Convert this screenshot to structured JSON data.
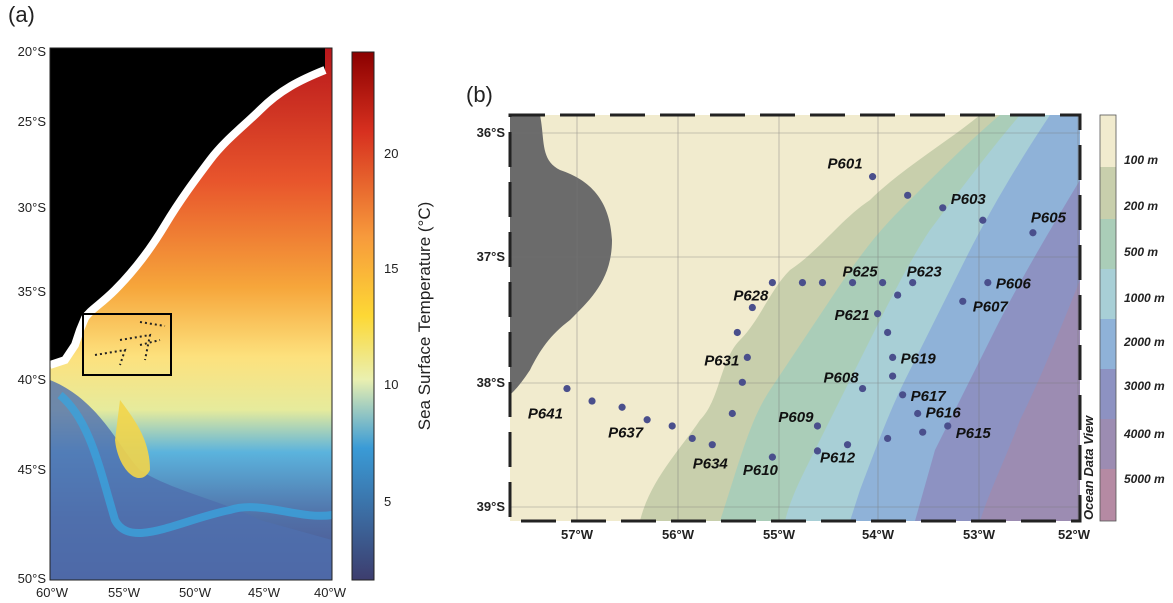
{
  "panel_a": {
    "label": "(a)",
    "lat_ticks": [
      "20°S",
      "25°S",
      "30°S",
      "35°S",
      "40°S",
      "45°S",
      "50°S"
    ],
    "lon_ticks": [
      "60°W",
      "55°W",
      "50°W",
      "45°W",
      "40°W"
    ],
    "colorbar_title": "Sea Surface Temperature (°C)",
    "colorbar_ticks": [
      "20",
      "15",
      "10",
      "5"
    ],
    "colors": {
      "land": "#000000",
      "coast": "#ffffff",
      "warm": "#d7301f",
      "mid": "#fdd835",
      "cold": "#3a9bd6",
      "deep": "#4a4f8c"
    }
  },
  "panel_b": {
    "label": "(b)",
    "lat_ticks": [
      "36°S",
      "37°S",
      "38°S",
      "39°S"
    ],
    "lon_ticks": [
      "57°W",
      "56°W",
      "55°W",
      "54°W",
      "53°W",
      "52°W"
    ],
    "depth_legend": [
      "100 m",
      "200 m",
      "500 m",
      "1000 m",
      "2000 m",
      "3000 m",
      "4000 m",
      "5000 m"
    ],
    "watermark": "Ocean Data View",
    "colors": {
      "land": "#6b6b6b",
      "shelf": "#f1ebce",
      "band200": "#c8cfac",
      "band500": "#aacdb8",
      "band1000": "#a8cfd6",
      "band2000": "#8fb2d8",
      "band3000": "#8d92c2",
      "band4000": "#9c8cb2",
      "station": "#4a4f8c"
    },
    "labeled_stations": [
      {
        "name": "P601",
        "lon": -54.05,
        "lat": -36.35
      },
      {
        "name": "P603",
        "lon": -53.35,
        "lat": -36.6
      },
      {
        "name": "P605",
        "lon": -52.45,
        "lat": -36.8
      },
      {
        "name": "P628",
        "lon": -55.05,
        "lat": -37.2
      },
      {
        "name": "P625",
        "lon": -54.25,
        "lat": -37.2
      },
      {
        "name": "P623",
        "lon": -53.65,
        "lat": -37.2
      },
      {
        "name": "P606",
        "lon": -52.9,
        "lat": -37.2
      },
      {
        "name": "P607",
        "lon": -53.15,
        "lat": -37.35
      },
      {
        "name": "P621",
        "lon": -54.0,
        "lat": -37.45
      },
      {
        "name": "P631",
        "lon": -55.3,
        "lat": -37.8
      },
      {
        "name": "P619",
        "lon": -53.85,
        "lat": -37.8
      },
      {
        "name": "P608",
        "lon": -54.15,
        "lat": -38.05
      },
      {
        "name": "P617",
        "lon": -53.75,
        "lat": -38.1
      },
      {
        "name": "P616",
        "lon": -53.6,
        "lat": -38.25
      },
      {
        "name": "P641",
        "lon": -57.1,
        "lat": -38.05
      },
      {
        "name": "P637",
        "lon": -56.3,
        "lat": -38.3
      },
      {
        "name": "P609",
        "lon": -54.6,
        "lat": -38.35
      },
      {
        "name": "P615",
        "lon": -53.3,
        "lat": -38.35
      },
      {
        "name": "P634",
        "lon": -55.65,
        "lat": -38.5
      },
      {
        "name": "P610",
        "lon": -55.05,
        "lat": -38.6
      },
      {
        "name": "P612",
        "lon": -54.3,
        "lat": -38.5
      }
    ],
    "other_stations": [
      {
        "lon": -53.7,
        "lat": -36.5
      },
      {
        "lon": -52.95,
        "lat": -36.7
      },
      {
        "lon": -54.75,
        "lat": -37.2
      },
      {
        "lon": -54.55,
        "lat": -37.2
      },
      {
        "lon": -53.95,
        "lat": -37.2
      },
      {
        "lon": -53.8,
        "lat": -37.3
      },
      {
        "lon": -55.25,
        "lat": -37.4
      },
      {
        "lon": -55.4,
        "lat": -37.6
      },
      {
        "lon": -53.9,
        "lat": -37.6
      },
      {
        "lon": -53.85,
        "lat": -37.95
      },
      {
        "lon": -55.35,
        "lat": -38.0
      },
      {
        "lon": -56.85,
        "lat": -38.15
      },
      {
        "lon": -56.55,
        "lat": -38.2
      },
      {
        "lon": -56.05,
        "lat": -38.35
      },
      {
        "lon": -55.85,
        "lat": -38.45
      },
      {
        "lon": -55.45,
        "lat": -38.25
      },
      {
        "lon": -54.6,
        "lat": -38.55
      },
      {
        "lon": -53.9,
        "lat": -38.45
      },
      {
        "lon": -53.55,
        "lat": -38.4
      }
    ]
  }
}
